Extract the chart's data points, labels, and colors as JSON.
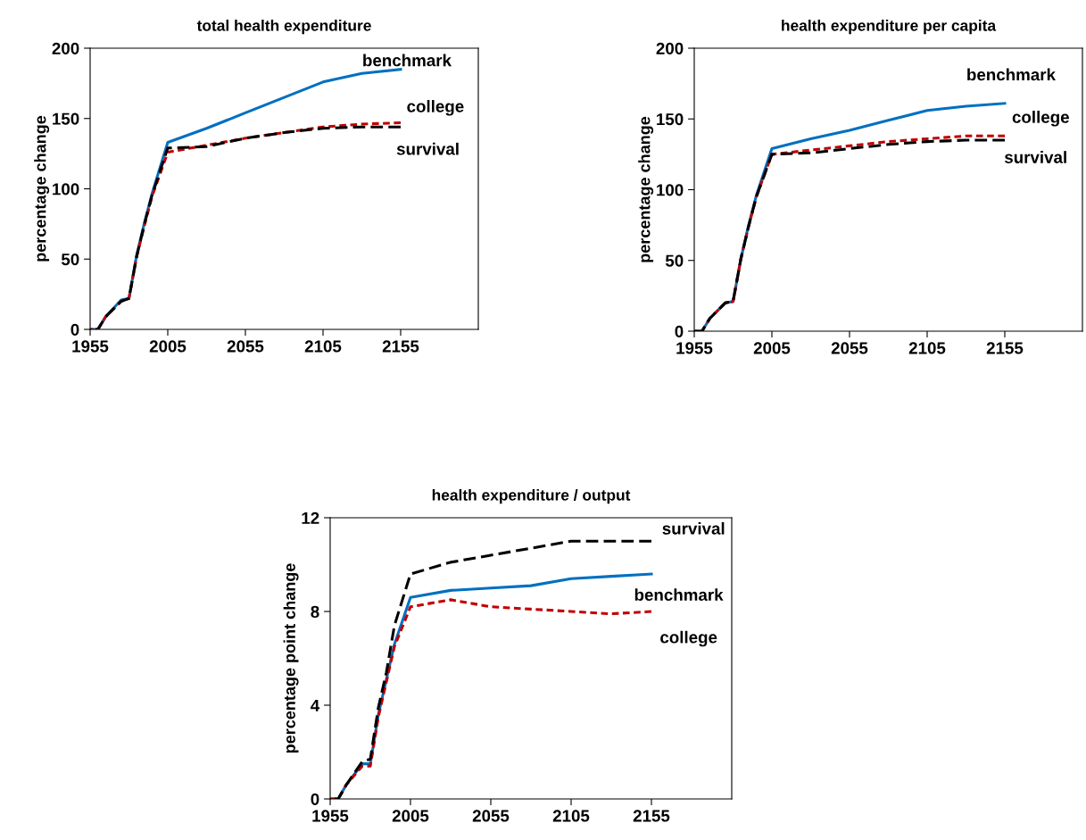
{
  "chart_data": [
    {
      "type": "line",
      "title": "total health expenditure",
      "ylabel": "percentage change",
      "xlim": [
        1955,
        2205
      ],
      "xticks": [
        1955,
        2005,
        2055,
        2105,
        2155
      ],
      "ylim": [
        0,
        200
      ],
      "yticks": [
        0,
        50,
        100,
        150,
        200
      ],
      "grid": false,
      "legend": false,
      "x": [
        1955,
        1960,
        1965,
        1975,
        1980,
        1985,
        1990,
        1995,
        2005,
        2030,
        2055,
        2080,
        2105,
        2130,
        2155
      ],
      "series": [
        {
          "name": "benchmark",
          "color": "#0070c0",
          "line_style": "solid",
          "values": [
            0,
            0,
            9,
            21,
            22,
            53,
            76,
            97,
            133,
            143,
            154,
            165,
            176,
            182,
            185
          ]
        },
        {
          "name": "college",
          "color": "#c00000",
          "line_style": "dotted",
          "values": [
            0,
            0,
            9,
            20,
            22,
            52,
            74,
            95,
            126,
            131,
            136,
            140,
            144,
            146,
            147
          ]
        },
        {
          "name": "survival",
          "color": "#000000",
          "line_style": "dashed",
          "values": [
            0,
            0,
            9,
            20,
            22,
            52,
            75,
            96,
            129,
            130,
            136,
            140,
            143,
            144,
            144
          ]
        }
      ]
    },
    {
      "type": "line",
      "title": "health expenditure per capita",
      "ylabel": "percentage change",
      "xlim": [
        1955,
        2205
      ],
      "xticks": [
        1955,
        2005,
        2055,
        2105,
        2155
      ],
      "ylim": [
        0,
        200
      ],
      "yticks": [
        0,
        50,
        100,
        150,
        200
      ],
      "grid": false,
      "legend": false,
      "x": [
        1955,
        1960,
        1965,
        1975,
        1980,
        1985,
        1990,
        1995,
        2005,
        2030,
        2055,
        2080,
        2105,
        2130,
        2155
      ],
      "series": [
        {
          "name": "benchmark",
          "color": "#0070c0",
          "line_style": "solid",
          "values": [
            0,
            0,
            9,
            20,
            21,
            51,
            75,
            96,
            129,
            136,
            142,
            149,
            156,
            159,
            161
          ]
        },
        {
          "name": "college",
          "color": "#c00000",
          "line_style": "dotted",
          "values": [
            0,
            0,
            9,
            20,
            21,
            51,
            74,
            95,
            125,
            128,
            131,
            134,
            136,
            138,
            138
          ]
        },
        {
          "name": "survival",
          "color": "#000000",
          "line_style": "dashed",
          "values": [
            0,
            0,
            9,
            20,
            21,
            51,
            74,
            95,
            125,
            126,
            129,
            132,
            134,
            135,
            135
          ]
        }
      ]
    },
    {
      "type": "line",
      "title": "health expenditure / output",
      "ylabel": "percentage point change",
      "xlim": [
        1955,
        2205
      ],
      "xticks": [
        1955,
        2005,
        2055,
        2105,
        2155
      ],
      "ylim": [
        0,
        12
      ],
      "yticks": [
        0,
        4,
        8,
        12
      ],
      "grid": false,
      "legend": false,
      "x": [
        1955,
        1960,
        1965,
        1975,
        1980,
        1985,
        1990,
        1995,
        2005,
        2030,
        2055,
        2080,
        2105,
        2130,
        2155
      ],
      "series": [
        {
          "name": "benchmark",
          "color": "#0070c0",
          "line_style": "solid",
          "values": [
            0,
            0,
            0.6,
            1.5,
            1.5,
            3.6,
            5.1,
            6.6,
            8.6,
            8.9,
            9.0,
            9.1,
            9.4,
            9.5,
            9.6
          ]
        },
        {
          "name": "college",
          "color": "#c00000",
          "line_style": "dotted",
          "values": [
            0,
            0,
            0.6,
            1.4,
            1.4,
            3.5,
            5.0,
            6.5,
            8.2,
            8.5,
            8.2,
            8.1,
            8.0,
            7.9,
            8.0
          ]
        },
        {
          "name": "survival",
          "color": "#000000",
          "line_style": "dashed",
          "values": [
            0,
            0,
            0.6,
            1.6,
            1.7,
            3.9,
            5.4,
            7.4,
            9.6,
            10.1,
            10.4,
            10.7,
            11.0,
            11.0,
            11.0
          ]
        }
      ]
    }
  ]
}
